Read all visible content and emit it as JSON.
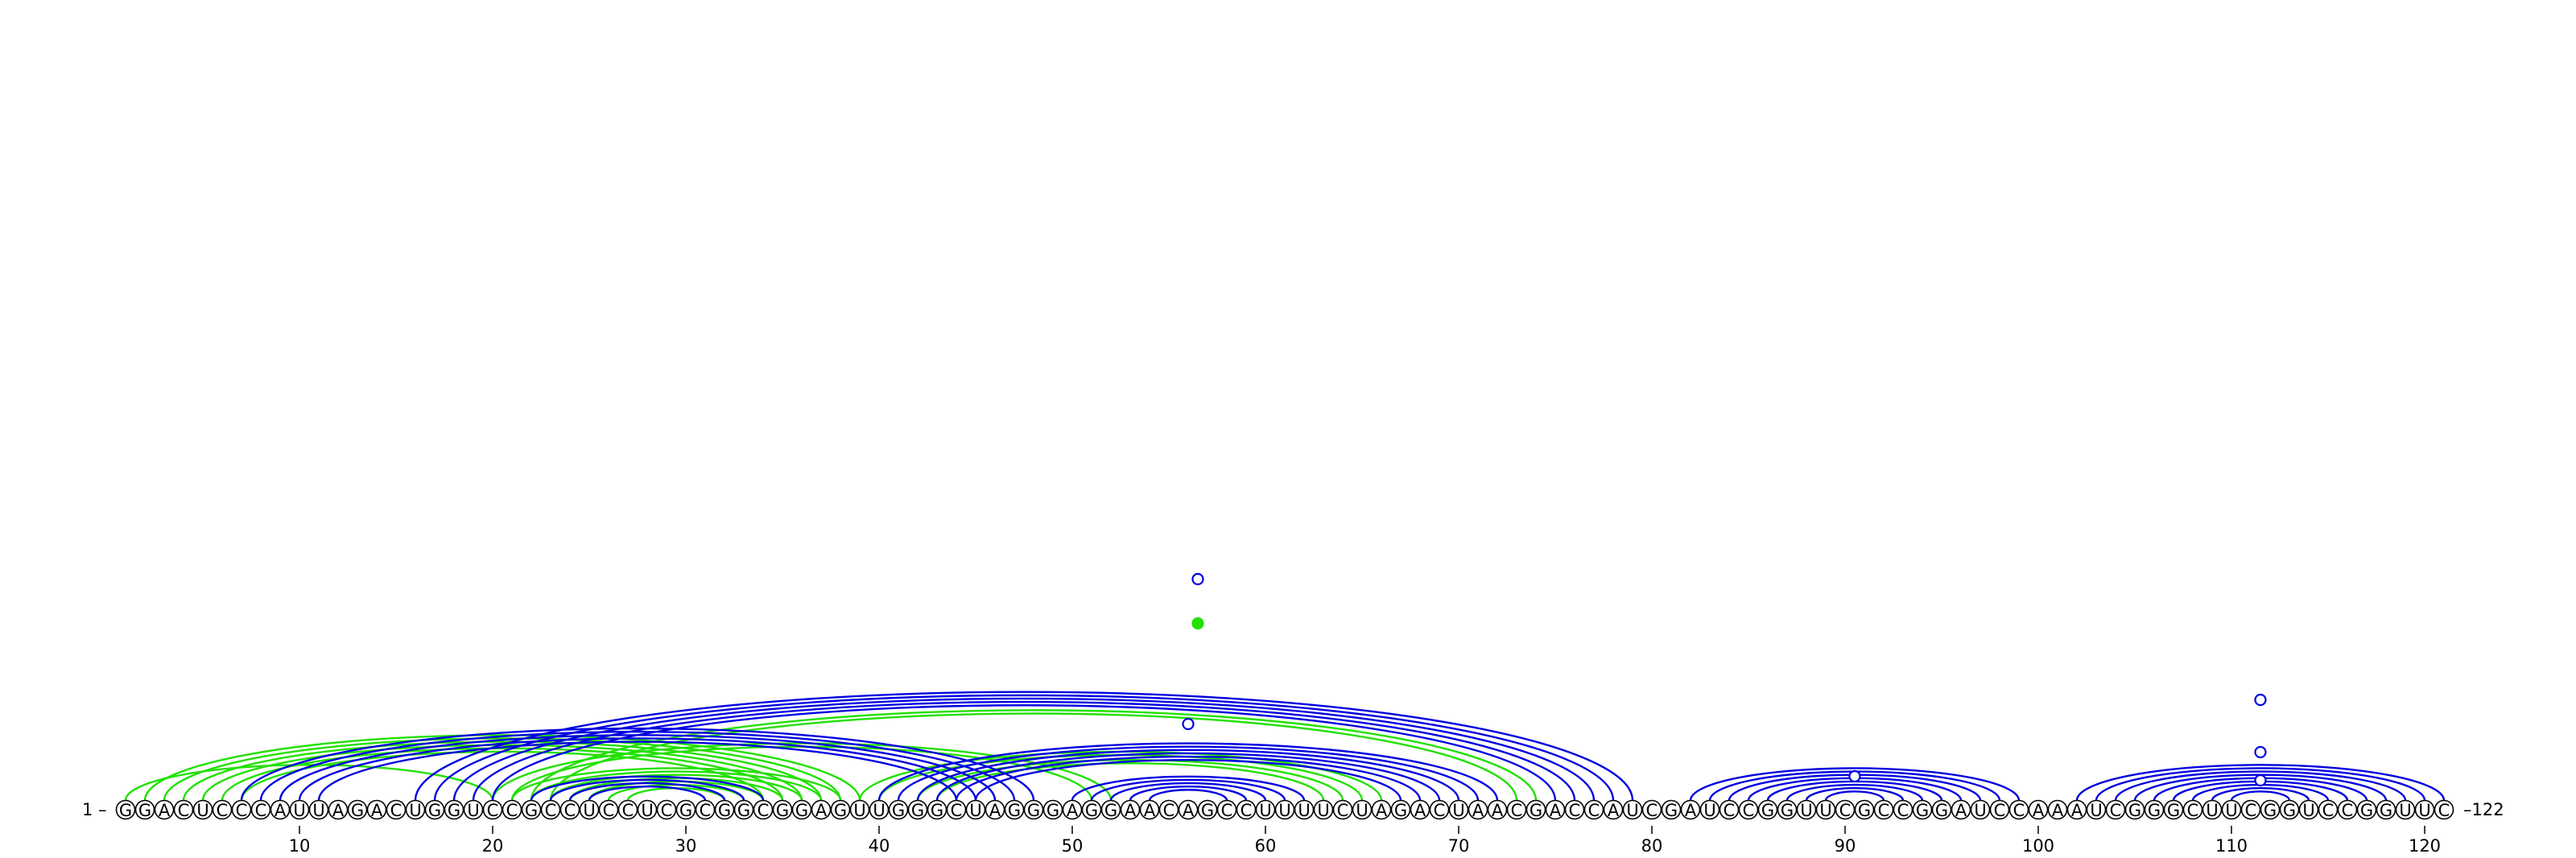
{
  "sequence": "GGACUCCCAUUAGACUGGUCCGCCUCCUCGCGGCGGAGUUGGGCUAGGGAGGAACAGCCUUUUCUAGACUAACGACCAUCGAUCCGGUUCGCCGGAUCCAAAUCGGGCUUCGGUCCGGUUC",
  "start_label": "1 –",
  "end_label": "–122",
  "tick_values": [
    "10",
    "20",
    "30",
    "40",
    "50",
    "60",
    "70",
    "80",
    "90",
    "100",
    "110",
    "120"
  ],
  "colors": {
    "blue": "#0000e0",
    "green": "#22e000",
    "text": "#000000"
  },
  "blue_pairs": [
    [
      7,
      48
    ],
    [
      8,
      47
    ],
    [
      9,
      46
    ],
    [
      10,
      45
    ],
    [
      11,
      44
    ],
    [
      16,
      79
    ],
    [
      17,
      78
    ],
    [
      18,
      77
    ],
    [
      19,
      76
    ],
    [
      20,
      75
    ],
    [
      22,
      34
    ],
    [
      23,
      33
    ],
    [
      24,
      32
    ],
    [
      25,
      31
    ],
    [
      40,
      72
    ],
    [
      41,
      71
    ],
    [
      42,
      70
    ],
    [
      43,
      69
    ],
    [
      44,
      68
    ],
    [
      45,
      67
    ],
    [
      50,
      62
    ],
    [
      51,
      61
    ],
    [
      52,
      60
    ],
    [
      53,
      59
    ],
    [
      54,
      58
    ],
    [
      82,
      99
    ],
    [
      83,
      98
    ],
    [
      84,
      97
    ],
    [
      85,
      96
    ],
    [
      86,
      95
    ],
    [
      87,
      94
    ],
    [
      88,
      93
    ],
    [
      89,
      92
    ],
    [
      102,
      121
    ],
    [
      103,
      120
    ],
    [
      104,
      119
    ],
    [
      105,
      118
    ],
    [
      106,
      117
    ],
    [
      107,
      116
    ],
    [
      108,
      115
    ],
    [
      109,
      114
    ],
    [
      110,
      113
    ]
  ],
  "green_pairs": [
    [
      1,
      20
    ],
    [
      2,
      39
    ],
    [
      3,
      38
    ],
    [
      4,
      37
    ],
    [
      5,
      36
    ],
    [
      6,
      35
    ],
    [
      7,
      34
    ],
    [
      20,
      52
    ],
    [
      21,
      51
    ],
    [
      22,
      74
    ],
    [
      23,
      73
    ],
    [
      21,
      38
    ],
    [
      22,
      37
    ],
    [
      23,
      36
    ],
    [
      24,
      35
    ],
    [
      25,
      34
    ],
    [
      26,
      33
    ],
    [
      27,
      32
    ],
    [
      39,
      66
    ],
    [
      40,
      65
    ],
    [
      42,
      64
    ],
    [
      43,
      63
    ]
  ],
  "markers": [
    {
      "pos": 56.5,
      "height": 0.55,
      "filled": false,
      "color": "blue"
    },
    {
      "pos": 56.5,
      "height": 0.44,
      "filled": true,
      "color": "green"
    },
    {
      "pos": 56.0,
      "height": 0.19,
      "filled": false,
      "color": "blue"
    },
    {
      "pos": 90.5,
      "height": 0.06,
      "filled": false,
      "color": "blue"
    },
    {
      "pos": 111.5,
      "height": 0.25,
      "filled": false,
      "color": "blue"
    },
    {
      "pos": 111.5,
      "height": 0.12,
      "filled": false,
      "color": "blue"
    },
    {
      "pos": 111.5,
      "height": 0.05,
      "filled": false,
      "color": "blue"
    }
  ]
}
